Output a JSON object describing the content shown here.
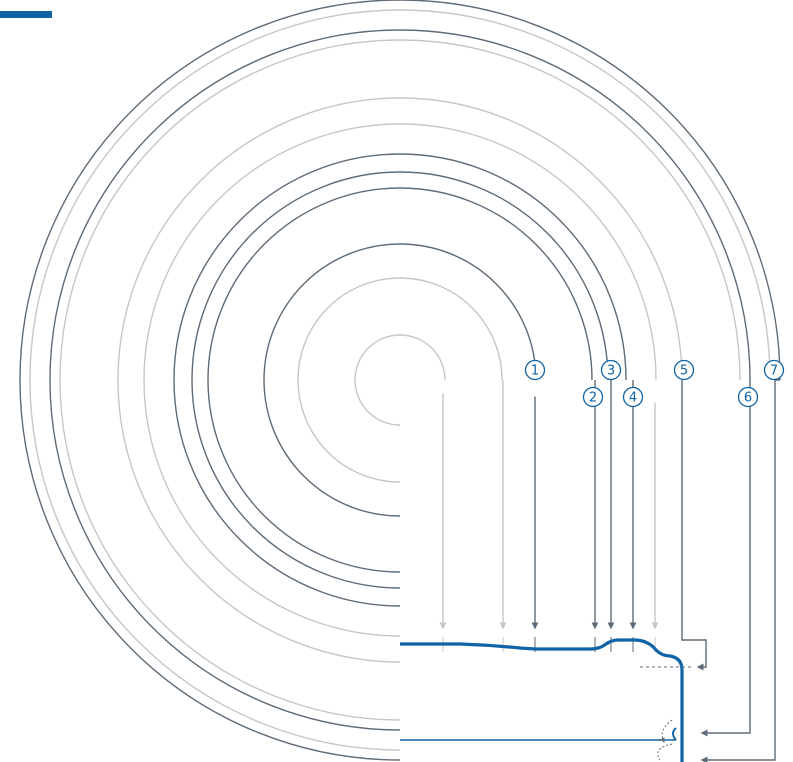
{
  "colors": {
    "dark_ring": "#5e6b78",
    "light_ring": "#c3c7cb",
    "profile": "#0f63a6",
    "accent": "#0f63a6",
    "label": "#0f63a6"
  },
  "icons": {
    "top_left": "accent-bar",
    "arrows": "arrowhead-icon",
    "return_arcs": "curved-arrow-icon"
  },
  "labels": [
    "1",
    "2",
    "3",
    "4",
    "5",
    "6",
    "7"
  ]
}
